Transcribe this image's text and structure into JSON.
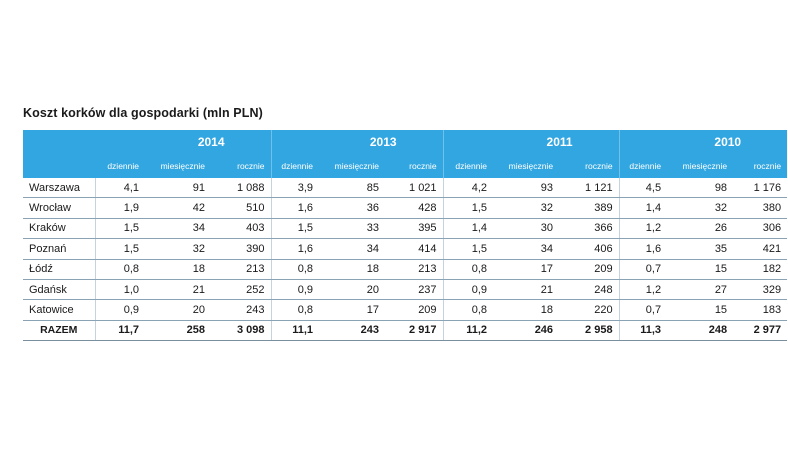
{
  "title": "Koszt korków dla gospodarki (mln PLN)",
  "years": [
    "2014",
    "2013",
    "2011",
    "2010"
  ],
  "sub_headers": [
    "dziennie",
    "miesięcznie",
    "rocznie"
  ],
  "rows": [
    {
      "city": "Warszawa",
      "values": [
        "4,1",
        "91",
        "1 088",
        "3,9",
        "85",
        "1 021",
        "4,2",
        "93",
        "1 121",
        "4,5",
        "98",
        "1 176"
      ]
    },
    {
      "city": "Wrocław",
      "values": [
        "1,9",
        "42",
        "510",
        "1,6",
        "36",
        "428",
        "1,5",
        "32",
        "389",
        "1,4",
        "32",
        "380"
      ]
    },
    {
      "city": "Kraków",
      "values": [
        "1,5",
        "34",
        "403",
        "1,5",
        "33",
        "395",
        "1,4",
        "30",
        "366",
        "1,2",
        "26",
        "306"
      ]
    },
    {
      "city": "Poznań",
      "values": [
        "1,5",
        "32",
        "390",
        "1,6",
        "34",
        "414",
        "1,5",
        "34",
        "406",
        "1,6",
        "35",
        "421"
      ]
    },
    {
      "city": "Łódź",
      "values": [
        "0,8",
        "18",
        "213",
        "0,8",
        "18",
        "213",
        "0,8",
        "17",
        "209",
        "0,7",
        "15",
        "182"
      ]
    },
    {
      "city": "Gdańsk",
      "values": [
        "1,0",
        "21",
        "252",
        "0,9",
        "20",
        "237",
        "0,9",
        "21",
        "248",
        "1,2",
        "27",
        "329"
      ]
    },
    {
      "city": "Katowice",
      "values": [
        "0,9",
        "20",
        "243",
        "0,8",
        "17",
        "209",
        "0,8",
        "18",
        "220",
        "0,7",
        "15",
        "183"
      ]
    }
  ],
  "total": {
    "city": "RAZEM",
    "values": [
      "11,7",
      "258",
      "3 098",
      "11,1",
      "243",
      "2 917",
      "11,2",
      "246",
      "2 958",
      "11,3",
      "248",
      "2 977"
    ]
  }
}
